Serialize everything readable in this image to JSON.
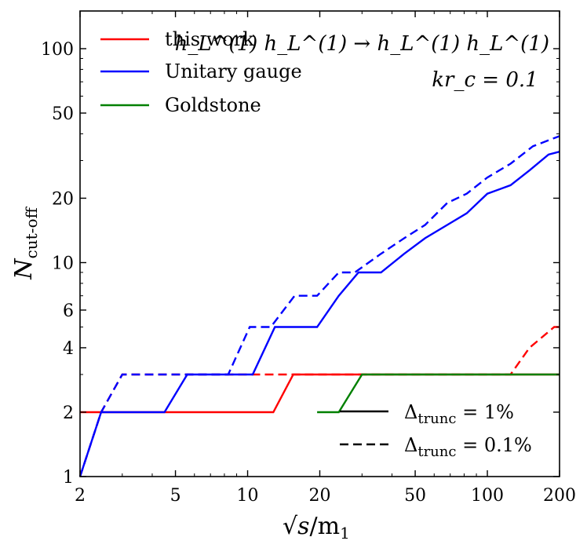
{
  "chart_data": {
    "type": "line",
    "title": "",
    "xlabel": "√s/m₁",
    "ylabel": "N_cut-off",
    "xscale": "log",
    "yscale": "log",
    "xlim": [
      2,
      200
    ],
    "ylim": [
      1,
      150
    ],
    "xticks": [
      2,
      5,
      10,
      20,
      50,
      100,
      200
    ],
    "yticks": [
      1,
      2,
      4,
      6,
      10,
      20,
      50,
      100
    ],
    "grid": false,
    "legend_position": "top-left",
    "legend": [
      {
        "name": "this work",
        "color": "#ff0000"
      },
      {
        "name": "Unitary gauge",
        "color": "#0000ff"
      },
      {
        "name": "Goldstone",
        "color": "#008000"
      }
    ],
    "style_legend": {
      "position": "bottom-right",
      "items": [
        {
          "style": "solid",
          "text": "Δ_trunc = 1%"
        },
        {
          "style": "dashed",
          "text": "Δ_trunc = 0.1%"
        }
      ]
    },
    "annotations": [
      "h_L^(1) h_L^(1) → h_L^(1) h_L^(1)",
      "kr_c = 0.1"
    ],
    "series": [
      {
        "name": "this work",
        "color": "#ff0000",
        "style": "solid",
        "x": [
          2,
          12.8,
          15.5,
          200
        ],
        "y": [
          2,
          2,
          3,
          3
        ]
      },
      {
        "name": "this work",
        "color": "#ff0000",
        "style": "dashed",
        "x": [
          2,
          2.45,
          3.0,
          125,
          150,
          190,
          200
        ],
        "y": [
          1,
          2,
          3,
          3,
          4,
          5,
          5
        ]
      },
      {
        "name": "Unitary gauge",
        "color": "#0000ff",
        "style": "solid",
        "x": [
          2,
          2.45,
          4.5,
          5.6,
          10.5,
          13,
          19.5,
          24,
          29,
          36,
          45,
          55,
          68,
          82,
          100,
          125,
          150,
          180,
          200
        ],
        "y": [
          1,
          2,
          2,
          3,
          3,
          5,
          5,
          7,
          9,
          9,
          11,
          13,
          15,
          17,
          21,
          23,
          27,
          32,
          33
        ]
      },
      {
        "name": "Unitary gauge",
        "color": "#0000ff",
        "style": "dashed",
        "x": [
          2,
          2.45,
          3.0,
          8.3,
          10.2,
          12.5,
          15.7,
          19.5,
          24,
          28,
          36,
          45,
          55,
          68,
          82,
          100,
          125,
          155,
          200
        ],
        "y": [
          1,
          2,
          3,
          3,
          5,
          5,
          7,
          7,
          9,
          9,
          11,
          13,
          15,
          19,
          21,
          25,
          29,
          35,
          39
        ]
      },
      {
        "name": "Goldstone",
        "color": "#008000",
        "style": "solid",
        "x": [
          19.5,
          24,
          30,
          200
        ],
        "y": [
          2,
          2,
          3,
          3
        ]
      }
    ]
  },
  "labels": {
    "x_sqrt": "√",
    "x_s": "s",
    "x_rest": "/m",
    "x_sub": "1",
    "y_main": "N",
    "y_sub": "cut-off",
    "legend_1": "this work",
    "legend_2": "Unitary gauge",
    "legend_3": "Goldstone",
    "style_delta": "Δ",
    "style_sub": "trunc",
    "style_1_val": " = 1%",
    "style_2_val": " = 0.1%",
    "annot_1": "h_L^(1) h_L^(1) → h_L^(1) h_L^(1)",
    "annot_2": "kr_c = 0.1"
  }
}
